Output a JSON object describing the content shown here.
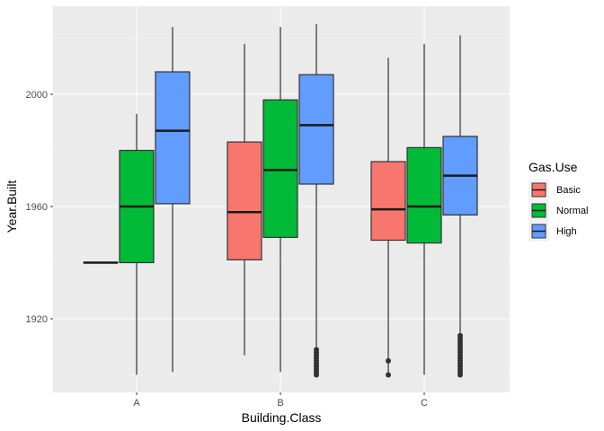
{
  "chart_data": {
    "type": "boxplot",
    "xlabel": "Building.Class",
    "ylabel": "Year.Built",
    "categories": [
      "A",
      "B",
      "C"
    ],
    "y_ticks": [
      1920,
      1960,
      2000
    ],
    "ylim": [
      1896,
      2030
    ],
    "grid": true,
    "legend": {
      "title": "Gas.Use",
      "position": "right",
      "entries": [
        "Basic",
        "Normal",
        "High"
      ]
    },
    "colors": {
      "Basic": "#F8766D",
      "Normal": "#00BA38",
      "High": "#619CFF"
    },
    "series": [
      {
        "name": "Basic",
        "boxes": [
          null,
          {
            "category": "B",
            "min": 1907,
            "q1": 1941,
            "median": 1958,
            "q3": 1983,
            "max": 2018,
            "outliers": []
          },
          {
            "category": "C",
            "min": 1900,
            "q1": 1948,
            "median": 1959,
            "q3": 1976,
            "max": 2013,
            "outliers": [
              1900,
              1905
            ]
          }
        ]
      },
      {
        "name": "Normal",
        "boxes": [
          {
            "category": "A",
            "min": 1900,
            "q1": 1940,
            "median": 1960,
            "q3": 1980,
            "max": 1993,
            "outliers": []
          },
          {
            "category": "B",
            "min": 1901,
            "q1": 1949,
            "median": 1973,
            "q3": 1998,
            "max": 2024,
            "outliers": []
          },
          {
            "category": "C",
            "min": 1900,
            "q1": 1947,
            "median": 1960,
            "q3": 1981,
            "max": 2018,
            "outliers": []
          }
        ]
      },
      {
        "name": "High",
        "boxes": [
          {
            "category": "A",
            "min": 1901,
            "q1": 1961,
            "median": 1987,
            "q3": 2008,
            "max": 2024,
            "outliers": []
          },
          {
            "category": "B",
            "min": 1910,
            "q1": 1968,
            "median": 1989,
            "q3": 2007,
            "max": 2025,
            "outliers": [
              1900,
              1901,
              1902,
              1903,
              1904,
              1905,
              1906,
              1907,
              1908,
              1909
            ]
          },
          {
            "category": "C",
            "min": 1915,
            "q1": 1957,
            "median": 1971,
            "q3": 1985,
            "max": 2021,
            "outliers": [
              1900,
              1901,
              1902,
              1903,
              1904,
              1905,
              1906,
              1907,
              1908,
              1909,
              1910,
              1911,
              1912,
              1913,
              1914
            ]
          }
        ]
      }
    ],
    "extra_boxes": [
      {
        "series": "Basic",
        "category": "A",
        "min": 1940,
        "q1": 1940,
        "median": 1940,
        "q3": 1940,
        "max": 1940,
        "outliers": []
      }
    ]
  }
}
